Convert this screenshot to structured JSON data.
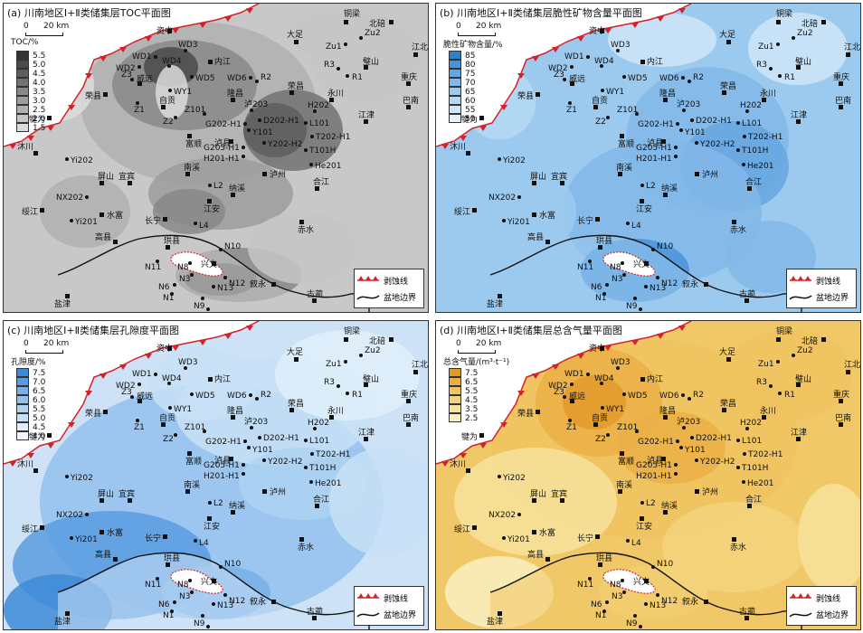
{
  "panels": [
    {
      "id": "a",
      "title": "(a) 川南地区Ⅰ+Ⅱ类储集层TOC平面图",
      "legend_title": "TOC/%",
      "ticks": [
        "5.5",
        "5.0",
        "4.5",
        "4.0",
        "3.5",
        "3.0",
        "2.5",
        "2.0",
        "1.5"
      ],
      "colors": [
        "#333333",
        "#4a4a4a",
        "#5e5e5e",
        "#727272",
        "#888888",
        "#9c9c9c",
        "#b0b0b0",
        "#c6c6c6",
        "#dcdcdc"
      ],
      "bg": "#c8c8c8"
    },
    {
      "id": "b",
      "title": "(b) 川南地区Ⅰ+Ⅱ类储集层脆性矿物含量平面图",
      "legend_title": "脆性矿物含量/%",
      "ticks": [
        "85",
        "80",
        "75",
        "70",
        "65",
        "60",
        "55",
        "50"
      ],
      "colors": [
        "#2f7fcf",
        "#4a93d8",
        "#66a6e0",
        "#82b9e8",
        "#9ccaee",
        "#b6d9f3",
        "#cfe6f8",
        "#e6f2fc"
      ],
      "bg": "#9ccaee"
    },
    {
      "id": "c",
      "title": "(c) 川南地区Ⅰ+Ⅱ类储集层孔隙度平面图",
      "legend_title": "孔隙度/%",
      "ticks": [
        "7.5",
        "7.0",
        "6.5",
        "6.0",
        "5.5",
        "5.0",
        "4.5",
        "4.0"
      ],
      "colors": [
        "#3d8ad8",
        "#5a9ce0",
        "#77afe7",
        "#93c1ed",
        "#aed2f2",
        "#c8e0f6",
        "#dfeefa",
        "#f1f7fd"
      ],
      "bg": "#cde2f6"
    },
    {
      "id": "d",
      "title": "(d) 川南地区Ⅰ+Ⅱ类储集层总含气量平面图",
      "legend_title": "总含气量/(m³·t⁻¹)",
      "ticks": [
        "7.5",
        "6.5",
        "5.5",
        "4.5",
        "3.5",
        "2.5"
      ],
      "colors": [
        "#e39a2c",
        "#eab045",
        "#efc360",
        "#f3d37d",
        "#f7e29d",
        "#faeec0"
      ],
      "bg": "#f0c868"
    }
  ],
  "scale": {
    "zero": "0",
    "km": "20 km"
  },
  "legend": {
    "erosion": "剥蚀线",
    "boundary": "盆地边界"
  },
  "cities": [
    {
      "name": "铜梁"
    },
    {
      "name": "北碚"
    },
    {
      "name": "大足"
    },
    {
      "name": "江北"
    },
    {
      "name": "璧山"
    },
    {
      "name": "重庆"
    },
    {
      "name": "巴南"
    },
    {
      "name": "资中"
    },
    {
      "name": "内江"
    },
    {
      "name": "威远"
    },
    {
      "name": "荣县"
    },
    {
      "name": "隆昌"
    },
    {
      "name": "荣昌"
    },
    {
      "name": "永川"
    },
    {
      "name": "自贡"
    },
    {
      "name": "富顺"
    },
    {
      "name": "泸县"
    },
    {
      "name": "江津"
    },
    {
      "name": "犍为"
    },
    {
      "name": "沐川"
    },
    {
      "name": "屏山"
    },
    {
      "name": "宜宾"
    },
    {
      "name": "南溪"
    },
    {
      "name": "泸州"
    },
    {
      "name": "合江"
    },
    {
      "name": "纳溪"
    },
    {
      "name": "江安"
    },
    {
      "name": "绥江"
    },
    {
      "name": "水富"
    },
    {
      "name": "长宁"
    },
    {
      "name": "赤水"
    },
    {
      "name": "高县"
    },
    {
      "name": "珙县"
    },
    {
      "name": "兴文"
    },
    {
      "name": "叙永"
    },
    {
      "name": "古蔺"
    },
    {
      "name": "盐津"
    }
  ],
  "wells": [
    {
      "name": "Zu2"
    },
    {
      "name": "Zu1"
    },
    {
      "name": "R3"
    },
    {
      "name": "R1"
    },
    {
      "name": "WD3"
    },
    {
      "name": "WD1"
    },
    {
      "name": "WD4"
    },
    {
      "name": "WD2"
    },
    {
      "name": "Z3"
    },
    {
      "name": "WD5"
    },
    {
      "name": "WY1"
    },
    {
      "name": "WD6"
    },
    {
      "name": "R2"
    },
    {
      "name": "Z1"
    },
    {
      "name": "Z2"
    },
    {
      "name": "Z101"
    },
    {
      "name": "H202"
    },
    {
      "name": "泸203"
    },
    {
      "name": "D202-H1"
    },
    {
      "name": "L101"
    },
    {
      "name": "G202-H1"
    },
    {
      "name": "Y101"
    },
    {
      "name": "T202-H1"
    },
    {
      "name": "G205-H1"
    },
    {
      "name": "Y202-H2"
    },
    {
      "name": "T101H"
    },
    {
      "name": "H201-H1"
    },
    {
      "name": "He201"
    },
    {
      "name": "Yi202"
    },
    {
      "name": "NX202"
    },
    {
      "name": "Yi201"
    },
    {
      "name": "L2"
    },
    {
      "name": "L4"
    },
    {
      "name": "N10"
    },
    {
      "name": "N11"
    },
    {
      "name": "N8"
    },
    {
      "name": "N3"
    },
    {
      "name": "N6"
    },
    {
      "name": "N12"
    },
    {
      "name": "N13"
    },
    {
      "name": "N1"
    },
    {
      "name": "N9"
    },
    {
      "name": "N15"
    }
  ]
}
